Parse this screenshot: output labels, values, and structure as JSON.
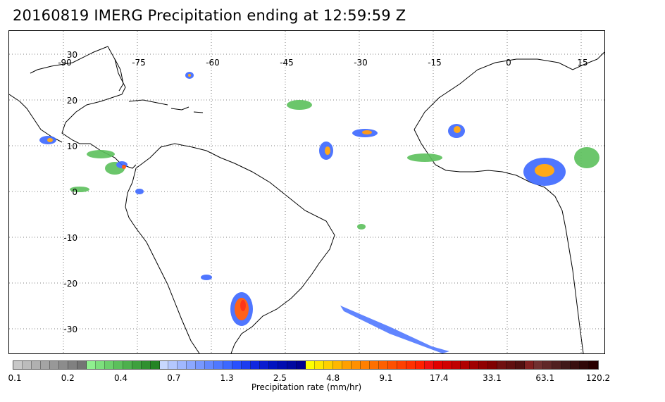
{
  "header": {
    "title": "20160819 IMERG Precipitation ending at 12:59:59 Z"
  },
  "map": {
    "lon_labels": [
      "-90",
      "-75",
      "-60",
      "-45",
      "-30",
      "-15",
      "0",
      "15"
    ],
    "lat_labels": [
      "30",
      "20",
      "10",
      "0",
      "-10",
      "-20",
      "-30"
    ]
  },
  "legend": {
    "title": "Precipitation rate (mm/hr)",
    "ticks": [
      "0.1",
      "0.2",
      "0.4",
      "0.7",
      "1.3",
      "2.5",
      "4.8",
      "9.1",
      "17.4",
      "33.1",
      "63.1",
      "120.2"
    ],
    "colors": [
      "#c8c8c8",
      "#bcbcbc",
      "#b0b0b0",
      "#a4a4a4",
      "#989898",
      "#8c8c8c",
      "#808080",
      "#747474",
      "#8ff08f",
      "#7de07d",
      "#6cd06c",
      "#5cc05c",
      "#4db04d",
      "#3ea03e",
      "#309030",
      "#248424",
      "#c8d8ff",
      "#b4c8ff",
      "#a0b8ff",
      "#8ca8ff",
      "#7898ff",
      "#6488ff",
      "#5078ff",
      "#3c68ff",
      "#2850ff",
      "#1c3cf0",
      "#1028e0",
      "#0a1cd0",
      "#0012c0",
      "#000cb0",
      "#0008a0",
      "#000090",
      "#ffff00",
      "#ffe800",
      "#ffd000",
      "#ffb800",
      "#ffa000",
      "#ff9000",
      "#ff8000",
      "#ff7000",
      "#ff6000",
      "#ff5000",
      "#ff4000",
      "#ff3000",
      "#ff2000",
      "#f01010",
      "#e00000",
      "#d00000",
      "#c00000",
      "#b00000",
      "#a00000",
      "#900000",
      "#800000",
      "#701010",
      "#601010",
      "#501010",
      "#802020",
      "#703030",
      "#602828",
      "#502020",
      "#401818",
      "#381010",
      "#300808",
      "#280000"
    ]
  }
}
